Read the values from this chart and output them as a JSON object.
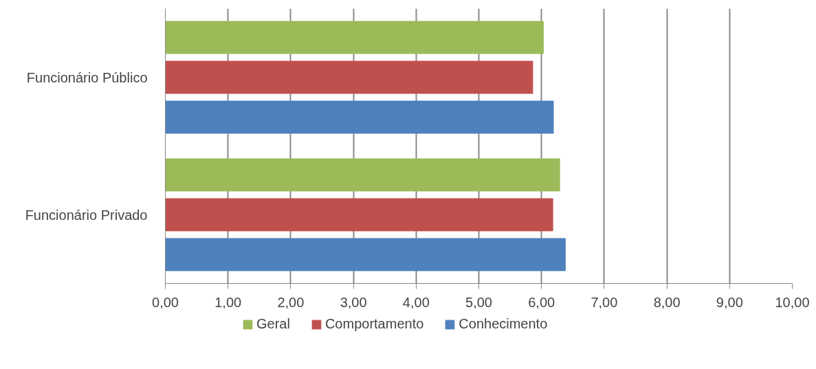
{
  "chart_data": {
    "type": "bar",
    "orientation": "horizontal",
    "categories": [
      "Funcionário Público",
      "Funcionário Privado"
    ],
    "series": [
      {
        "name": "Geral",
        "color": "#9bbb59",
        "values": [
          6.03,
          6.29
        ]
      },
      {
        "name": "Comportamento",
        "color": "#c0504d",
        "values": [
          5.86,
          6.18
        ]
      },
      {
        "name": "Conhecimento",
        "color": "#4f81bd",
        "values": [
          6.19,
          6.38
        ]
      }
    ],
    "xlim": [
      0,
      10
    ],
    "xticks": [
      {
        "value": 0,
        "label": "0,00"
      },
      {
        "value": 1,
        "label": "1,00"
      },
      {
        "value": 2,
        "label": "2,00"
      },
      {
        "value": 3,
        "label": "3,00"
      },
      {
        "value": 4,
        "label": "4,00"
      },
      {
        "value": 5,
        "label": "5,00"
      },
      {
        "value": 6,
        "label": "6,00"
      },
      {
        "value": 7,
        "label": "7,00"
      },
      {
        "value": 8,
        "label": "8,00"
      },
      {
        "value": 9,
        "label": "9,00"
      },
      {
        "value": 10,
        "label": "10,00"
      }
    ],
    "grid": "x",
    "legend": "bottom"
  }
}
